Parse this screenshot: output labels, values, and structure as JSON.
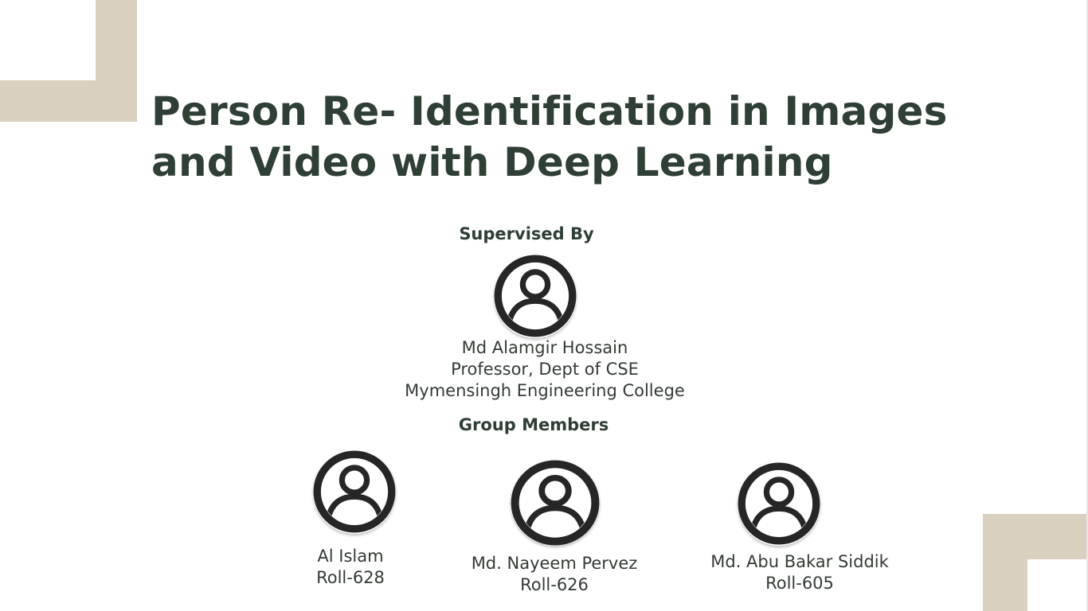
{
  "title": {
    "line1": "Person Re- Identification in Images",
    "line2": "and Video with Deep Learning"
  },
  "supervisor_section": {
    "label": "Supervised By",
    "avatar_icon": "user-circle-icon",
    "name": "Md Alamgir Hossain",
    "designation": "Professor, Dept of CSE",
    "institution": "Mymensingh Engineering College"
  },
  "members_section": {
    "label": "Group Members",
    "members": [
      {
        "name": "Al Islam",
        "roll": "Roll-628",
        "avatar_icon": "user-circle-icon"
      },
      {
        "name": "Md. Nayeem Pervez",
        "roll": "Roll-626",
        "avatar_icon": "user-circle-icon"
      },
      {
        "name": "Md. Abu Bakar Siddik",
        "roll": "Roll-605",
        "avatar_icon": "user-circle-icon"
      }
    ]
  },
  "colors": {
    "title": "#2f3f35",
    "text": "#333b34",
    "accent_corner": "#d9d0bf",
    "icon": "#262626",
    "background": "#ffffff"
  }
}
